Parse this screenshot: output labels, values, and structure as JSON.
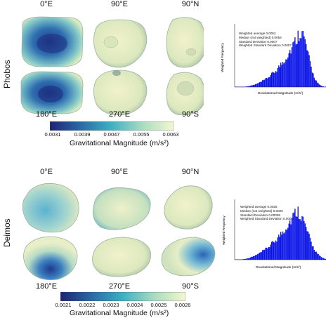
{
  "phobos": {
    "name": "Phobos",
    "views": {
      "top": [
        "0°E",
        "90°E",
        "90°N"
      ],
      "bottom": [
        "180°E",
        "270°E",
        "90°S"
      ]
    },
    "colorbar": {
      "title": "Gravitational Magnitude (m/s²)",
      "ticks": [
        "0.0031",
        "0.0039",
        "0.0047",
        "0.0055",
        "0.0063"
      ]
    },
    "histogram": {
      "stats": [
        "Weighted average 0.0052",
        "Median (not weighted) 0.0054",
        "Standard Deviation 0.0007",
        "Weighted Standard Deviation 0.0007"
      ],
      "xlabel": "Gravitational Magnitude (m/s²)",
      "ylabel": "Weighted Frequency"
    }
  },
  "deimos": {
    "name": "Deimos",
    "views": {
      "top": [
        "0°E",
        "90°E",
        "90°N"
      ],
      "bottom": [
        "180°E",
        "270°E",
        "90°S"
      ]
    },
    "colorbar": {
      "title": "Gravitational Magnitude (m/s²)",
      "ticks": [
        "0.0021",
        "0.0022",
        "0.0023",
        "0.0024",
        "0.0025",
        "0.0026"
      ]
    },
    "histogram": {
      "stats": [
        "Weighted average 0.0025",
        "Median (not weighted) 0.0025",
        "Standard Deviation 0.00009",
        "Weighted Standard Deviation 0.0001"
      ],
      "xlabel": "Gravitational Magnitude (m/s²)",
      "ylabel": "Weighted Frequency"
    }
  },
  "colors": {
    "dark_blue": "#1e2f7a",
    "teal": "#3aa6c2",
    "light": "#edf5c5",
    "histogram_bar": "#0a14e6"
  }
}
